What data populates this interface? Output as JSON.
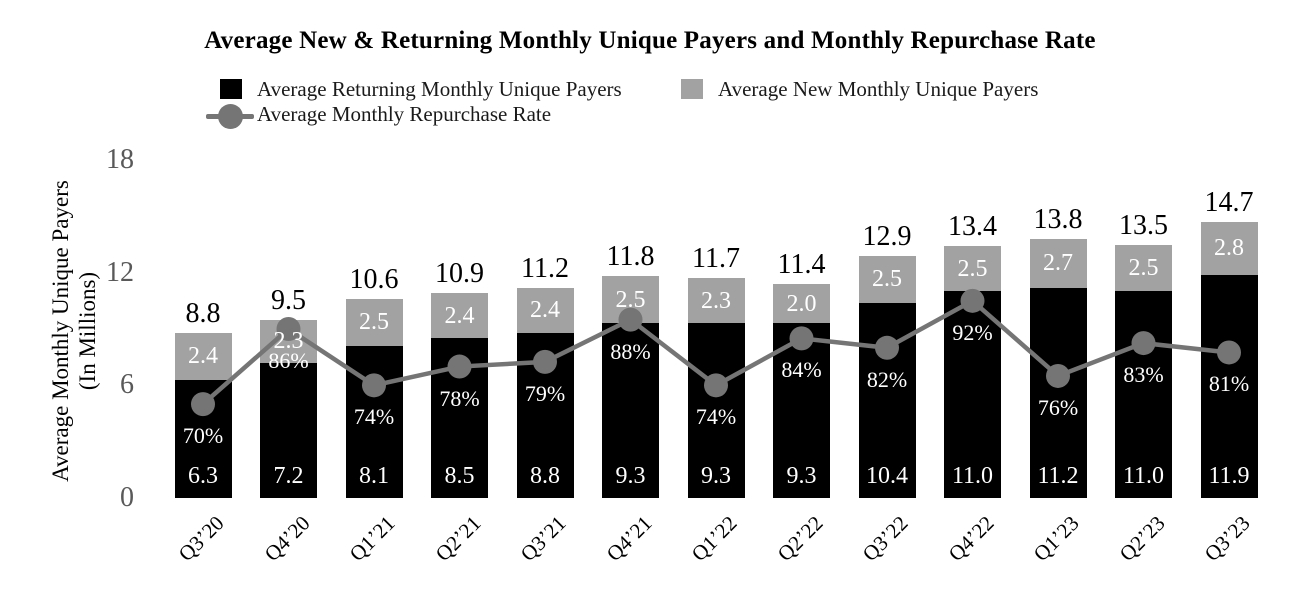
{
  "title": "Average New & Returning Monthly Unique Payers and Monthly Repurchase Rate",
  "legend": [
    {
      "label": "Average Returning Monthly Unique Payers",
      "swatch": "black-square"
    },
    {
      "label": "Average New Monthly Unique Payers",
      "swatch": "gray-square"
    },
    {
      "label": "Average Monthly Repurchase Rate",
      "swatch": "gray-line-marker"
    }
  ],
  "y_axis": {
    "title_line1": "Average Monthly Unique Payers",
    "title_line2": "(In Millions)",
    "ticks": [
      18,
      12,
      6,
      0
    ]
  },
  "colors": {
    "returning_bar": "#000000",
    "new_bar": "#a2a2a2",
    "line": "#757575",
    "tick_text": "#595959"
  },
  "chart_data": {
    "type": "bar",
    "subtype": "stacked-bar-with-line",
    "categories": [
      "Q3’20",
      "Q4’20",
      "Q1’21",
      "Q2’21",
      "Q3’21",
      "Q4’21",
      "Q1’22",
      "Q2’22",
      "Q3’22",
      "Q4’22",
      "Q1’23",
      "Q2’23",
      "Q3’23"
    ],
    "series": [
      {
        "name": "Average Returning Monthly Unique Payers",
        "type": "bar",
        "stack_order": 0,
        "values": [
          6.3,
          7.2,
          8.1,
          8.5,
          8.8,
          9.3,
          9.3,
          9.3,
          10.4,
          11.0,
          11.2,
          11.0,
          11.9
        ]
      },
      {
        "name": "Average New Monthly Unique Payers",
        "type": "bar",
        "stack_order": 1,
        "values": [
          2.4,
          2.3,
          2.5,
          2.4,
          2.4,
          2.5,
          2.3,
          2.0,
          2.5,
          2.5,
          2.7,
          2.5,
          2.8
        ]
      },
      {
        "name": "Average Monthly Repurchase Rate",
        "type": "line",
        "unit": "%",
        "values": [
          70,
          86,
          74,
          78,
          79,
          88,
          74,
          84,
          82,
          92,
          76,
          83,
          81
        ]
      }
    ],
    "totals": [
      8.8,
      9.5,
      10.6,
      10.9,
      11.2,
      11.8,
      11.7,
      11.4,
      12.9,
      13.4,
      13.8,
      13.5,
      14.7
    ],
    "ylabel": "Average Monthly Unique Payers (In Millions)",
    "ylim": [
      0,
      18
    ],
    "grid": false,
    "legend_position": "top"
  }
}
